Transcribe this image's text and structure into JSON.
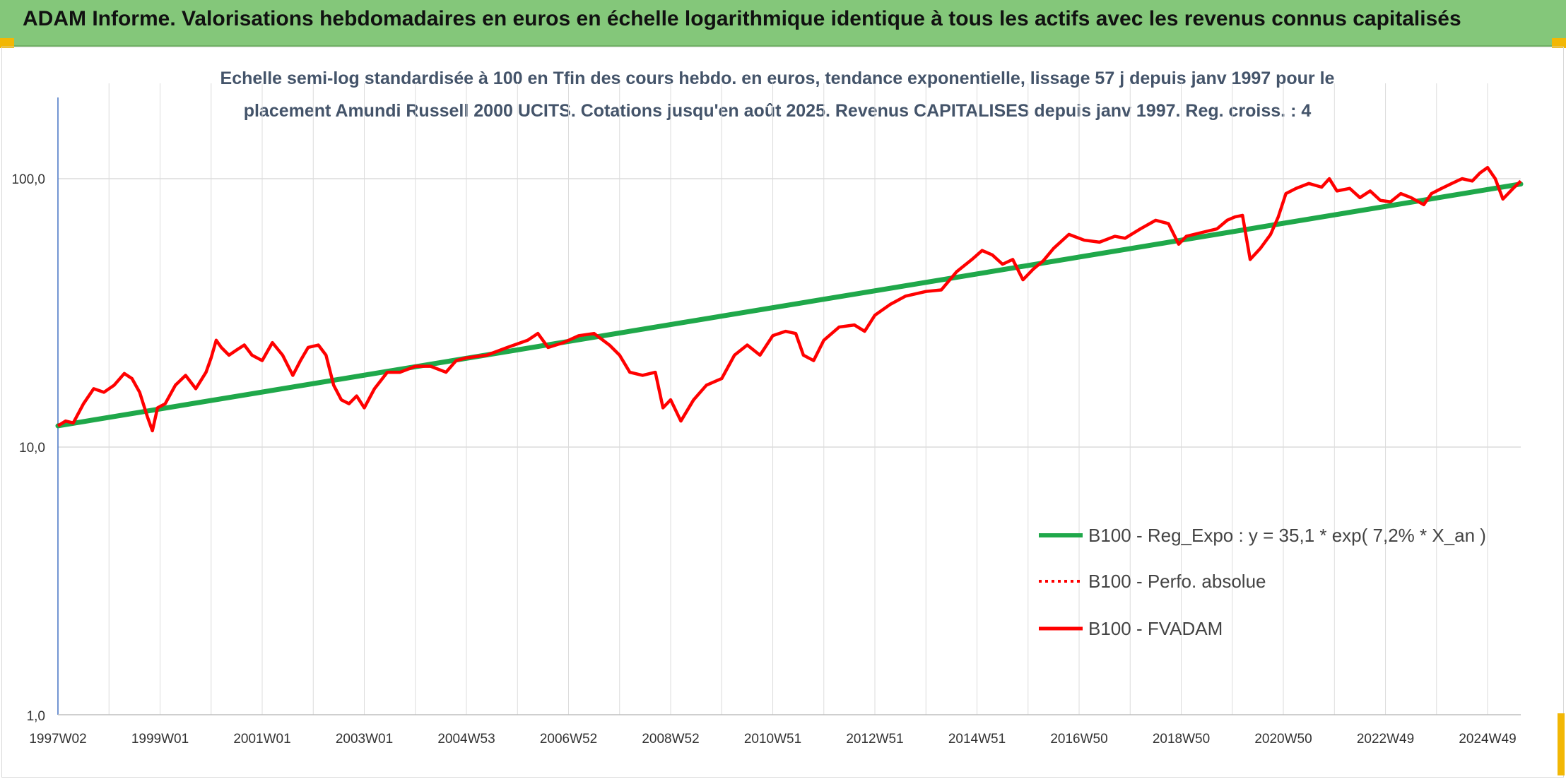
{
  "banner": {
    "title": "ADAM Informe. Valorisations hebdomadaires en euros en échelle logarithmique identique à tous les actifs avec les revenus connus capitalisés"
  },
  "colors": {
    "banner_bg": "#84c77a",
    "accent": "#f2b705",
    "regression": "#1fa84a",
    "fvadam": "#ff0000",
    "perfo": "#ff0000"
  },
  "chart_data": {
    "type": "line",
    "title_line1": "Echelle semi-log standardisée à 100 en Tfin des cours hebdo. en euros, tendance exponentielle, lissage 57 j depuis janv 1997 pour le",
    "title_line2": "placement Amundi Russell 2000 UCITS. Cotations jusqu'en août 2025. Revenus CAPITALISES depuis janv 1997. Reg. croiss. : 4",
    "y_scale": "log",
    "ylim": [
      1,
      200
    ],
    "y_ticks": [
      "1,0",
      "10,0",
      "100,0"
    ],
    "x_range": [
      1997.0,
      2025.65
    ],
    "x_ticks": [
      {
        "label": "1997W02",
        "year": 1997.0
      },
      {
        "label": "1999W01",
        "year": 1999.0
      },
      {
        "label": "2001W01",
        "year": 2001.0
      },
      {
        "label": "2003W01",
        "year": 2003.0
      },
      {
        "label": "2004W53",
        "year": 2005.0
      },
      {
        "label": "2006W52",
        "year": 2007.0
      },
      {
        "label": "2008W52",
        "year": 2009.0
      },
      {
        "label": "2010W51",
        "year": 2011.0
      },
      {
        "label": "2012W51",
        "year": 2013.0
      },
      {
        "label": "2014W51",
        "year": 2015.0
      },
      {
        "label": "2016W50",
        "year": 2017.0
      },
      {
        "label": "2018W50",
        "year": 2019.0
      },
      {
        "label": "2020W50",
        "year": 2021.0
      },
      {
        "label": "2022W49",
        "year": 2023.0
      },
      {
        "label": "2024W49",
        "year": 2025.0
      }
    ],
    "grid": true,
    "legend_position": "bottom-right",
    "series": [
      {
        "name": "B100 - Reg_Expo : y = 35,1 * exp( 7,2% *  X_an )",
        "style": "solid-thick",
        "x": [
          1997.0,
          2025.65
        ],
        "y": [
          12.0,
          95.5
        ]
      },
      {
        "name": "B100 - Perfo. absolue",
        "style": "dotted",
        "x": [],
        "y": []
      },
      {
        "name": "B100 - FVADAM",
        "style": "solid",
        "x": [
          1997.0,
          1997.15,
          1997.3,
          1997.5,
          1997.7,
          1997.9,
          1998.1,
          1998.3,
          1998.45,
          1998.6,
          1998.75,
          1998.85,
          1998.95,
          1999.1,
          1999.3,
          1999.5,
          1999.7,
          1999.9,
          2000.0,
          2000.1,
          2000.2,
          2000.35,
          2000.5,
          2000.65,
          2000.8,
          2001.0,
          2001.2,
          2001.4,
          2001.6,
          2001.75,
          2001.9,
          2002.1,
          2002.25,
          2002.4,
          2002.55,
          2002.7,
          2002.85,
          2003.0,
          2003.2,
          2003.45,
          2003.7,
          2004.0,
          2004.3,
          2004.6,
          2004.8,
          2005.0,
          2005.4,
          2005.8,
          2006.2,
          2006.4,
          2006.6,
          2006.9,
          2007.2,
          2007.5,
          2007.8,
          2008.0,
          2008.2,
          2008.45,
          2008.7,
          2008.85,
          2009.0,
          2009.2,
          2009.45,
          2009.7,
          2010.0,
          2010.25,
          2010.5,
          2010.75,
          2011.0,
          2011.25,
          2011.45,
          2011.6,
          2011.8,
          2012.0,
          2012.3,
          2012.6,
          2012.8,
          2013.0,
          2013.3,
          2013.6,
          2014.0,
          2014.3,
          2014.6,
          2014.9,
          2015.1,
          2015.3,
          2015.5,
          2015.7,
          2015.9,
          2016.1,
          2016.3,
          2016.5,
          2016.8,
          2017.1,
          2017.4,
          2017.7,
          2017.9,
          2018.2,
          2018.5,
          2018.75,
          2018.95,
          2019.1,
          2019.4,
          2019.7,
          2019.9,
          2020.05,
          2020.2,
          2020.35,
          2020.55,
          2020.75,
          2020.9,
          2021.05,
          2021.25,
          2021.5,
          2021.75,
          2021.9,
          2022.05,
          2022.3,
          2022.5,
          2022.7,
          2022.9,
          2023.1,
          2023.3,
          2023.5,
          2023.75,
          2023.9,
          2024.1,
          2024.3,
          2024.5,
          2024.7,
          2024.85,
          2025.0,
          2025.15,
          2025.3,
          2025.5,
          2025.65
        ],
        "y": [
          12.0,
          12.5,
          12.3,
          14.5,
          16.5,
          16.0,
          17.0,
          18.8,
          18.0,
          16.0,
          13.0,
          11.5,
          14.0,
          14.5,
          17.0,
          18.5,
          16.5,
          19.0,
          21.5,
          25.0,
          23.5,
          22.0,
          23.0,
          24.0,
          22.0,
          21.0,
          24.5,
          22.0,
          18.5,
          21.0,
          23.5,
          24.0,
          22.0,
          17.0,
          15.0,
          14.5,
          15.5,
          14.0,
          16.5,
          19.0,
          19.0,
          20.0,
          20.0,
          19.0,
          21.0,
          21.5,
          22.0,
          23.5,
          25.0,
          26.5,
          23.5,
          24.5,
          26.0,
          26.5,
          24.0,
          22.0,
          19.0,
          18.5,
          19.0,
          14.0,
          15.0,
          12.5,
          15.0,
          17.0,
          18.0,
          22.0,
          24.0,
          22.0,
          26.0,
          27.0,
          26.5,
          22.0,
          21.0,
          25.0,
          28.0,
          28.5,
          27.0,
          31.0,
          34.0,
          36.5,
          38.0,
          38.5,
          45.0,
          50.0,
          54.0,
          52.0,
          48.0,
          50.0,
          42.0,
          46.0,
          49.5,
          55.0,
          62.0,
          59.0,
          58.0,
          61.0,
          60.0,
          65.0,
          70.0,
          68.0,
          57.0,
          61.0,
          63.0,
          65.0,
          70.0,
          72.0,
          73.0,
          50.0,
          55.0,
          62.0,
          72.0,
          88.0,
          92.0,
          96.0,
          93.0,
          100.0,
          90.0,
          92.0,
          85.0,
          90.0,
          83.0,
          82.0,
          88.0,
          85.0,
          80.0,
          88.0,
          92.0,
          96.0,
          100.0,
          98.0,
          105.0,
          110.0,
          100.0,
          84.0,
          92.0,
          98.0
        ]
      }
    ]
  }
}
